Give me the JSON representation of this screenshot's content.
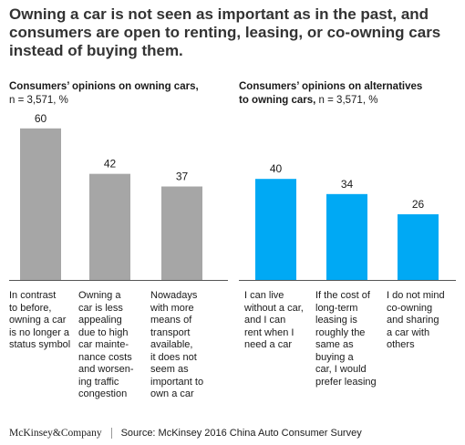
{
  "title": "Owning a car is not seen as important as in the past, and consumers are open to renting, leasing, or co-owning cars instead of buying them.",
  "footer": {
    "brand": "McKinsey&Company",
    "source": "Source: McKinsey 2016 China Auto Consumer Survey"
  },
  "chart_data": [
    {
      "type": "bar",
      "title": "Consumers’ opinions on owning cars,",
      "subtitle": "n = 3,571, %",
      "color": "#a6a6a6",
      "categories": [
        "In contrast to before, owning a car is no longer a status symbol",
        "Owning a car is less appealing due to high car maintenance costs and worsening traffic congestion",
        "Nowadays with more means of transport available, it does not seem as important to own a car"
      ],
      "category_lines": [
        "In contrast\nto before,\nowning a car\nis no longer a\nstatus symbol",
        "Owning a\ncar is less\nappealing\ndue to high\ncar mainte-\nnance costs\nand worsen-\ning traffic\ncongestion",
        "Nowadays\nwith more\nmeans of\ntransport\navailable,\nit does not\nseem as\nimportant to\nown a car"
      ],
      "values": [
        60,
        42,
        37
      ],
      "value_labels": [
        "60",
        "42",
        "37"
      ]
    },
    {
      "type": "bar",
      "title": "Consumers’ opinions on alternatives to owning cars,",
      "subtitle": "n = 3,571, %",
      "color": "#00a9f4",
      "categories": [
        "I can live without a car, and I can rent when I need a car",
        "If the cost of long-term leasing is roughly the same as buying a car, I would prefer leasing",
        "I do not mind co-owning and sharing a car with others"
      ],
      "category_lines": [
        "I can live\nwithout a car,\nand I can\nrent when I\nneed a car",
        "If the cost of\nlong-term\nleasing is\nroughly the\nsame as\nbuying a\ncar, I would\nprefer leasing",
        "I do not mind\nco-owning\nand sharing\na car with\nothers"
      ],
      "values": [
        40,
        34,
        26
      ],
      "value_labels": [
        "40",
        "34",
        "26"
      ]
    }
  ]
}
